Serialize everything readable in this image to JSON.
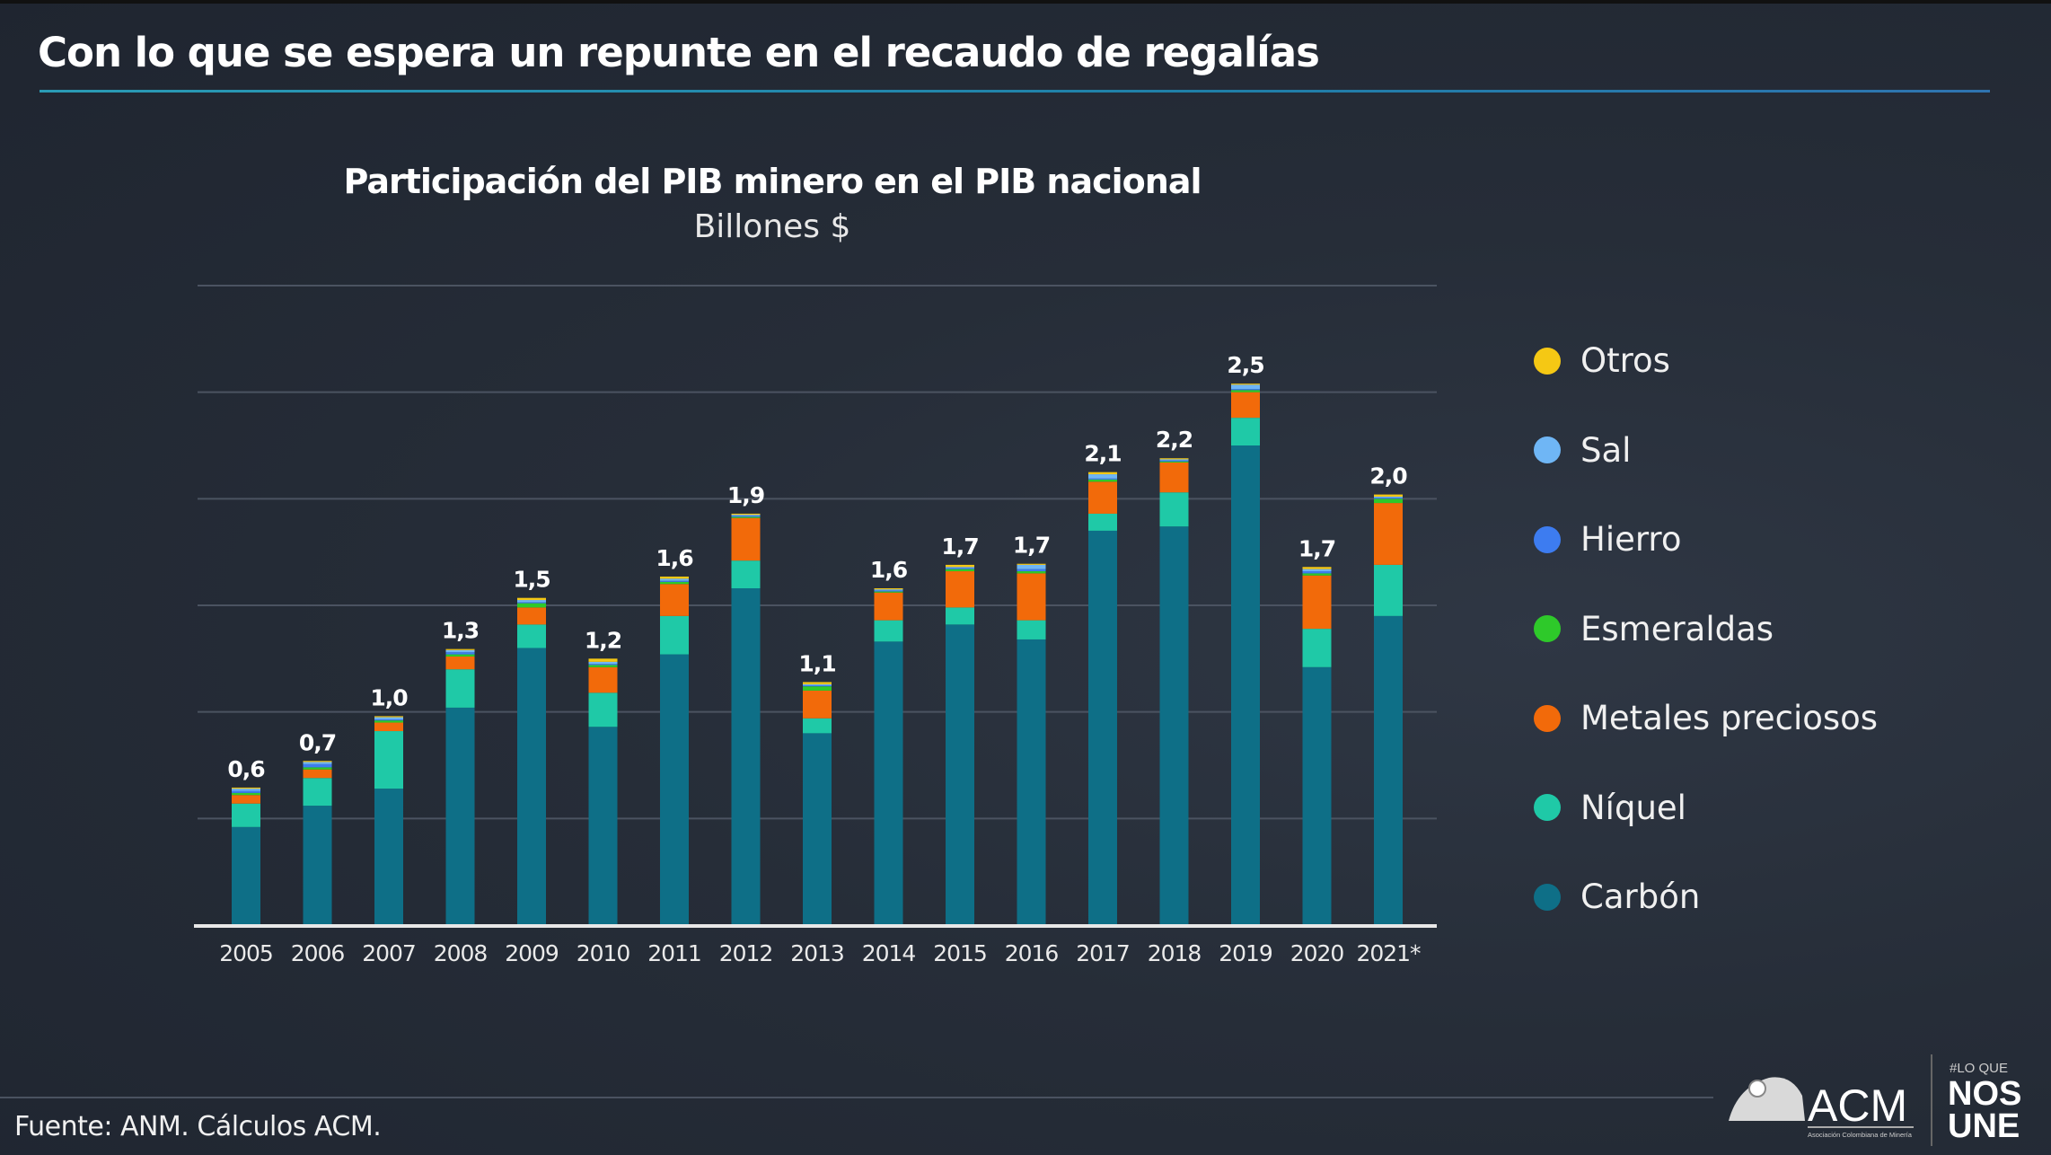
{
  "header": {
    "title": "Con lo que se espera un repunte en el recaudo de regalías"
  },
  "footer": {
    "source": "Fuente: ANM. Cálculos ACM."
  },
  "logo": {
    "acm": "ACM",
    "acm_sub": "Asociación Colombiana de Minería",
    "tag_small": "#LO QUE",
    "tag_big1": "NOS",
    "tag_big2": "UNE"
  },
  "chart_data": {
    "type": "bar",
    "stacked": true,
    "title": "Participación del PIB minero en el PIB nacional",
    "subtitle": "Billones $",
    "xlabel": "",
    "ylabel": "",
    "ylim": [
      0,
      3
    ],
    "grid": true,
    "legend_position": "right",
    "categories": [
      "2005",
      "2006",
      "2007",
      "2008",
      "2009",
      "2010",
      "2011",
      "2012",
      "2013",
      "2014",
      "2015",
      "2016",
      "2017",
      "2018",
      "2019",
      "2020",
      "2021*"
    ],
    "totals_labels": [
      "0,6",
      "0,7",
      "1,0",
      "1,3",
      "1,5",
      "1,2",
      "1,6",
      "1,9",
      "1,1",
      "1,6",
      "1,7",
      "1,7",
      "2,1",
      "2,2",
      "2,5",
      "1,7",
      "2,0"
    ],
    "series": [
      {
        "name": "Carbón",
        "color": "#0e6f87",
        "values": [
          0.46,
          0.56,
          0.64,
          1.02,
          1.3,
          0.93,
          1.27,
          1.58,
          0.9,
          1.33,
          1.41,
          1.34,
          1.85,
          1.87,
          2.25,
          1.21,
          1.45
        ]
      },
      {
        "name": "Níquel",
        "color": "#1fc9a7",
        "values": [
          0.11,
          0.13,
          0.27,
          0.18,
          0.11,
          0.16,
          0.18,
          0.13,
          0.07,
          0.1,
          0.08,
          0.09,
          0.08,
          0.16,
          0.13,
          0.18,
          0.24
        ]
      },
      {
        "name": "Metales preciosos",
        "color": "#f26a0a",
        "values": [
          0.04,
          0.04,
          0.04,
          0.06,
          0.08,
          0.12,
          0.15,
          0.2,
          0.13,
          0.13,
          0.17,
          0.22,
          0.15,
          0.14,
          0.12,
          0.25,
          0.29
        ]
      },
      {
        "name": "Esmeraldas",
        "color": "#2ec92a",
        "values": [
          0.01,
          0.01,
          0.01,
          0.01,
          0.02,
          0.01,
          0.01,
          0.005,
          0.02,
          0.005,
          0.01,
          0.01,
          0.01,
          0.005,
          0.01,
          0.01,
          0.02
        ]
      },
      {
        "name": "Hierro",
        "color": "#3d7cf0",
        "values": [
          0.01,
          0.015,
          0.005,
          0.01,
          0.005,
          0.005,
          0.005,
          0.005,
          0.005,
          0.005,
          0.005,
          0.01,
          0.005,
          0.005,
          0.005,
          0.01,
          0.005
        ]
      },
      {
        "name": "Sal",
        "color": "#6fb6f5",
        "values": [
          0.01,
          0.01,
          0.01,
          0.01,
          0.01,
          0.01,
          0.01,
          0.005,
          0.005,
          0.005,
          0.005,
          0.02,
          0.02,
          0.005,
          0.02,
          0.01,
          0.005
        ]
      },
      {
        "name": "Otros",
        "color": "#f5c814",
        "values": [
          0.005,
          0.005,
          0.005,
          0.005,
          0.01,
          0.015,
          0.01,
          0.005,
          0.01,
          0.005,
          0.01,
          0.005,
          0.01,
          0.005,
          0.005,
          0.01,
          0.01
        ]
      }
    ]
  }
}
